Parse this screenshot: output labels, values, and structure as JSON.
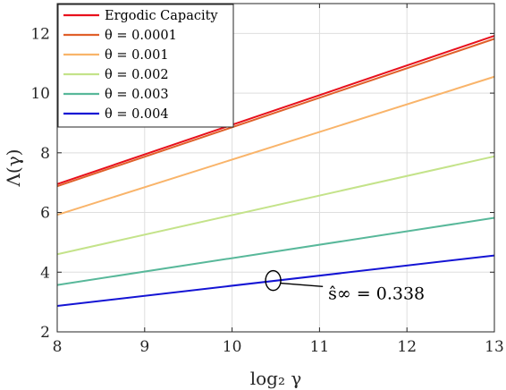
{
  "chart_data": {
    "type": "line",
    "xlabel": "log₂ γ",
    "ylabel": "Λ(γ)",
    "xlim": [
      8,
      13
    ],
    "ylim": [
      2,
      13
    ],
    "xticks": [
      "8",
      "9",
      "10",
      "11",
      "12",
      "13"
    ],
    "yticks": [
      "2",
      "4",
      "6",
      "8",
      "10",
      "12"
    ],
    "grid": true,
    "legend_position": "top-left",
    "series": [
      {
        "name": "Ergodic Capacity",
        "color": "#e8101c",
        "x": [
          8,
          13
        ],
        "y": [
          6.95,
          11.92
        ]
      },
      {
        "name": "θ = 0.0001",
        "color": "#e0602a",
        "x": [
          8,
          13
        ],
        "y": [
          6.88,
          11.82
        ]
      },
      {
        "name": "θ = 0.001",
        "color": "#f9b46a",
        "x": [
          8,
          13
        ],
        "y": [
          5.92,
          10.55
        ]
      },
      {
        "name": "θ = 0.002",
        "color": "#c4e38a",
        "x": [
          8,
          13
        ],
        "y": [
          4.6,
          7.88
        ]
      },
      {
        "name": "θ = 0.003",
        "color": "#58b89a",
        "x": [
          8,
          13
        ],
        "y": [
          3.57,
          5.82
        ]
      },
      {
        "name": "θ = 0.004",
        "color": "#1414d4",
        "x": [
          8,
          13
        ],
        "y": [
          2.87,
          4.56
        ]
      }
    ],
    "annotation": {
      "text": "ŝ∞ = 0.338",
      "point": [
        10.47,
        3.72
      ],
      "label_at": [
        11.1,
        3.1
      ]
    }
  }
}
